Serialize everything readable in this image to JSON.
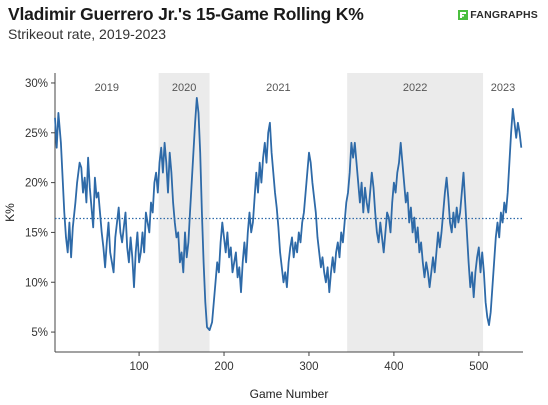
{
  "header": {
    "title": "Vladimir Guerrero Jr.'s 15-Game Rolling K%",
    "subtitle": "Strikeout rate, 2019-2023",
    "brand": "FANGRAPHS",
    "brand_icon": "fangraphs-logo-icon",
    "brand_color": "#4bbf3f"
  },
  "chart_data": {
    "type": "line",
    "title": "Vladimir Guerrero Jr.'s 15-Game Rolling K%",
    "subtitle": "Strikeout rate, 2019-2023",
    "xlabel": "Game Number",
    "ylabel": "K%",
    "xlim": [
      1,
      552
    ],
    "ylim": [
      3,
      31
    ],
    "xticks": [
      100,
      200,
      300,
      400,
      500
    ],
    "yticks": [
      5,
      10,
      15,
      20,
      25,
      30
    ],
    "ytick_labels": [
      "5%",
      "10%",
      "15%",
      "20%",
      "25%",
      "30%"
    ],
    "grid": false,
    "line_color": "#2e6aa8",
    "reference_line": {
      "value": 16.4,
      "style": "dotted",
      "color": "#2e6aa8"
    },
    "seasons": [
      {
        "label": "2019",
        "start": 1,
        "end": 123,
        "shaded": false
      },
      {
        "label": "2020",
        "start": 123,
        "end": 183,
        "shaded": true
      },
      {
        "label": "2021",
        "start": 183,
        "end": 345,
        "shaded": false
      },
      {
        "label": "2022",
        "start": 345,
        "end": 505,
        "shaded": true
      },
      {
        "label": "2023",
        "start": 505,
        "end": 552,
        "shaded": false
      }
    ],
    "shade_color": "#ebebeb",
    "series": [
      {
        "points": [
          [
            1,
            26.5
          ],
          [
            3,
            23.5
          ],
          [
            5,
            27
          ],
          [
            8,
            24
          ],
          [
            10,
            20.5
          ],
          [
            12,
            17
          ],
          [
            14,
            14.5
          ],
          [
            16,
            13
          ],
          [
            18,
            16
          ],
          [
            20,
            12.5
          ],
          [
            22,
            15.5
          ],
          [
            25,
            18
          ],
          [
            27,
            20
          ],
          [
            30,
            22
          ],
          [
            32,
            21.5
          ],
          [
            34,
            19
          ],
          [
            36,
            20.5
          ],
          [
            38,
            18
          ],
          [
            40,
            22.5
          ],
          [
            42,
            19.5
          ],
          [
            44,
            17.5
          ],
          [
            46,
            15.5
          ],
          [
            48,
            20.5
          ],
          [
            50,
            18.5
          ],
          [
            52,
            19
          ],
          [
            54,
            17
          ],
          [
            56,
            15
          ],
          [
            58,
            13.5
          ],
          [
            60,
            11.5
          ],
          [
            62,
            14
          ],
          [
            64,
            16
          ],
          [
            66,
            13
          ],
          [
            68,
            12
          ],
          [
            70,
            11
          ],
          [
            72,
            14.5
          ],
          [
            74,
            16
          ],
          [
            76,
            17.5
          ],
          [
            78,
            15
          ],
          [
            80,
            14
          ],
          [
            82,
            15.5
          ],
          [
            84,
            17
          ],
          [
            86,
            13.5
          ],
          [
            88,
            12
          ],
          [
            90,
            14.5
          ],
          [
            92,
            12.5
          ],
          [
            94,
            9.5
          ],
          [
            96,
            13
          ],
          [
            98,
            15
          ],
          [
            100,
            12
          ],
          [
            102,
            13
          ],
          [
            104,
            15
          ],
          [
            106,
            13
          ],
          [
            108,
            17
          ],
          [
            110,
            16
          ],
          [
            112,
            15
          ],
          [
            114,
            18
          ],
          [
            116,
            17
          ],
          [
            118,
            20
          ],
          [
            120,
            21
          ],
          [
            122,
            19
          ],
          [
            124,
            22
          ],
          [
            126,
            23.5
          ],
          [
            128,
            21
          ],
          [
            130,
            24
          ],
          [
            132,
            22
          ],
          [
            134,
            19
          ],
          [
            136,
            23
          ],
          [
            138,
            21
          ],
          [
            140,
            18
          ],
          [
            142,
            16
          ],
          [
            144,
            14.5
          ],
          [
            146,
            15
          ],
          [
            148,
            12
          ],
          [
            150,
            13
          ],
          [
            152,
            11
          ],
          [
            154,
            15
          ],
          [
            156,
            12.5
          ],
          [
            158,
            14
          ],
          [
            160,
            17
          ],
          [
            162,
            20
          ],
          [
            164,
            23
          ],
          [
            166,
            26
          ],
          [
            168,
            28.5
          ],
          [
            170,
            27
          ],
          [
            172,
            23
          ],
          [
            174,
            17
          ],
          [
            176,
            12
          ],
          [
            178,
            8
          ],
          [
            180,
            5.5
          ],
          [
            183,
            5.2
          ],
          [
            186,
            6
          ],
          [
            188,
            8
          ],
          [
            190,
            10
          ],
          [
            192,
            12
          ],
          [
            194,
            11
          ],
          [
            196,
            14
          ],
          [
            198,
            16
          ],
          [
            200,
            14.5
          ],
          [
            202,
            13
          ],
          [
            204,
            15
          ],
          [
            206,
            12.5
          ],
          [
            208,
            13.5
          ],
          [
            210,
            11
          ],
          [
            212,
            12
          ],
          [
            214,
            13
          ],
          [
            216,
            10.5
          ],
          [
            218,
            11.5
          ],
          [
            220,
            9
          ],
          [
            222,
            12
          ],
          [
            224,
            14
          ],
          [
            226,
            12
          ],
          [
            228,
            15
          ],
          [
            230,
            17
          ],
          [
            232,
            15
          ],
          [
            234,
            16
          ],
          [
            236,
            18.5
          ],
          [
            238,
            21
          ],
          [
            240,
            19
          ],
          [
            242,
            22
          ],
          [
            244,
            20
          ],
          [
            246,
            22.5
          ],
          [
            248,
            24
          ],
          [
            250,
            22
          ],
          [
            252,
            25
          ],
          [
            254,
            26
          ],
          [
            256,
            23
          ],
          [
            258,
            21
          ],
          [
            260,
            19
          ],
          [
            262,
            17.5
          ],
          [
            264,
            15.5
          ],
          [
            266,
            13
          ],
          [
            268,
            11.5
          ],
          [
            270,
            10
          ],
          [
            272,
            11
          ],
          [
            274,
            9.5
          ],
          [
            276,
            12
          ],
          [
            278,
            13.5
          ],
          [
            280,
            14.5
          ],
          [
            282,
            12.5
          ],
          [
            284,
            14
          ],
          [
            286,
            13
          ],
          [
            288,
            15
          ],
          [
            290,
            14
          ],
          [
            292,
            16
          ],
          [
            294,
            17
          ],
          [
            296,
            19
          ],
          [
            298,
            21
          ],
          [
            300,
            23
          ],
          [
            302,
            22
          ],
          [
            304,
            20
          ],
          [
            306,
            18.5
          ],
          [
            308,
            17
          ],
          [
            310,
            14.5
          ],
          [
            312,
            13
          ],
          [
            314,
            11.5
          ],
          [
            316,
            12.5
          ],
          [
            318,
            11
          ],
          [
            320,
            10
          ],
          [
            322,
            11.5
          ],
          [
            324,
            9
          ],
          [
            326,
            11
          ],
          [
            328,
            12.5
          ],
          [
            330,
            11
          ],
          [
            332,
            13
          ],
          [
            334,
            14
          ],
          [
            336,
            12.5
          ],
          [
            338,
            15
          ],
          [
            340,
            14
          ],
          [
            342,
            16
          ],
          [
            344,
            18
          ],
          [
            346,
            19
          ],
          [
            348,
            21
          ],
          [
            350,
            24
          ],
          [
            352,
            22.5
          ],
          [
            354,
            24
          ],
          [
            356,
            22
          ],
          [
            358,
            20
          ],
          [
            360,
            18
          ],
          [
            362,
            20
          ],
          [
            364,
            17
          ],
          [
            366,
            19.5
          ],
          [
            368,
            18
          ],
          [
            370,
            17
          ],
          [
            372,
            19
          ],
          [
            374,
            21
          ],
          [
            376,
            19.5
          ],
          [
            378,
            17
          ],
          [
            380,
            15
          ],
          [
            382,
            14
          ],
          [
            384,
            16
          ],
          [
            386,
            14.5
          ],
          [
            388,
            13
          ],
          [
            390,
            15
          ],
          [
            392,
            17
          ],
          [
            394,
            16.5
          ],
          [
            396,
            15
          ],
          [
            398,
            18
          ],
          [
            400,
            20
          ],
          [
            402,
            19
          ],
          [
            404,
            21
          ],
          [
            406,
            22
          ],
          [
            408,
            24
          ],
          [
            410,
            22
          ],
          [
            412,
            20
          ],
          [
            414,
            18
          ],
          [
            416,
            19
          ],
          [
            418,
            16
          ],
          [
            420,
            17.5
          ],
          [
            422,
            15
          ],
          [
            424,
            16.5
          ],
          [
            426,
            14
          ],
          [
            428,
            15.5
          ],
          [
            430,
            13
          ],
          [
            432,
            14
          ],
          [
            434,
            12
          ],
          [
            436,
            10.5
          ],
          [
            438,
            12
          ],
          [
            440,
            11
          ],
          [
            442,
            9.5
          ],
          [
            444,
            11
          ],
          [
            446,
            12.5
          ],
          [
            448,
            11
          ],
          [
            450,
            13
          ],
          [
            452,
            15
          ],
          [
            454,
            13.5
          ],
          [
            456,
            15
          ],
          [
            458,
            17
          ],
          [
            460,
            19
          ],
          [
            462,
            20.5
          ],
          [
            464,
            18.5
          ],
          [
            466,
            16
          ],
          [
            468,
            15
          ],
          [
            470,
            17
          ],
          [
            472,
            15.5
          ],
          [
            474,
            17.5
          ],
          [
            476,
            16
          ],
          [
            478,
            17
          ],
          [
            480,
            19
          ],
          [
            482,
            21
          ],
          [
            484,
            18
          ],
          [
            486,
            15
          ],
          [
            488,
            12
          ],
          [
            490,
            9.5
          ],
          [
            492,
            11
          ],
          [
            494,
            8.5
          ],
          [
            496,
            11
          ],
          [
            498,
            12.5
          ],
          [
            500,
            13.5
          ],
          [
            502,
            11
          ],
          [
            504,
            13
          ],
          [
            506,
            11
          ],
          [
            508,
            8
          ],
          [
            510,
            6.5
          ],
          [
            512,
            5.7
          ],
          [
            514,
            7
          ],
          [
            516,
            9.5
          ],
          [
            518,
            12
          ],
          [
            520,
            14.5
          ],
          [
            522,
            16
          ],
          [
            524,
            14.5
          ],
          [
            526,
            17
          ],
          [
            528,
            16
          ],
          [
            530,
            18
          ],
          [
            532,
            17
          ],
          [
            534,
            19
          ],
          [
            536,
            22
          ],
          [
            538,
            25
          ],
          [
            540,
            27.4
          ],
          [
            542,
            26
          ],
          [
            544,
            24.5
          ],
          [
            546,
            26
          ],
          [
            548,
            25
          ],
          [
            550,
            23.5
          ]
        ]
      }
    ]
  }
}
